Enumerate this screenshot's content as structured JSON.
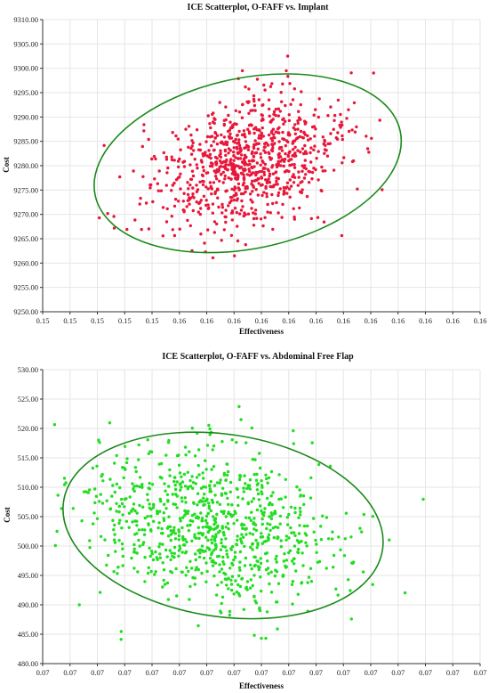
{
  "chart_data": [
    {
      "type": "scatter",
      "title": "ICE Scatterplot, O-FAFF vs. Implant",
      "xlabel": "Effectiveness",
      "ylabel": "Cost",
      "x_tick_labels": [
        "0.15",
        "0.15",
        "0.15",
        "0.15",
        "0.15",
        "0.16",
        "0.16",
        "0.16",
        "0.16",
        "0.16",
        "0.16",
        "0.16",
        "0.16",
        "0.16",
        "0.16",
        "0.16",
        "0.16"
      ],
      "xlim": [
        0.148,
        0.164
      ],
      "y_tick_labels": [
        "9250.00",
        "9255.00",
        "9260.00",
        "9265.00",
        "9270.00",
        "9275.00",
        "9280.00",
        "9285.00",
        "9290.00",
        "9295.00",
        "9300.00",
        "9305.00",
        "9310.00"
      ],
      "ylim": [
        9250,
        9310
      ],
      "point_color": "#e8173a",
      "ellipse_color": "#1a8a1a",
      "grid": true,
      "cloud": {
        "n": 900,
        "center": [
          0.1555,
          9280.5
        ],
        "x_sd": 0.0017,
        "y_sd": 7.0,
        "correlation": 0.35
      },
      "ellipse": {
        "center": [
          0.1555,
          9280.5
        ],
        "semi_major_x": 0.0057,
        "semi_minor_y": 17.5
      }
    },
    {
      "type": "scatter",
      "title": "ICE Scatterplot, O-FAFF vs. Abdominal Free Flap",
      "xlabel": "Effectiveness",
      "ylabel": "Cost",
      "x_tick_labels": [
        "0.07",
        "0.07",
        "0.07",
        "0.07",
        "0.07",
        "0.07",
        "0.07",
        "0.07",
        "0.07",
        "0.07",
        "0.07",
        "0.07",
        "0.07",
        "0.07",
        "0.07",
        "0.07",
        "0.07"
      ],
      "xlim": [
        0,
        16
      ],
      "y_tick_labels": [
        "480.00",
        "485.00",
        "490.00",
        "495.00",
        "500.00",
        "505.00",
        "510.00",
        "515.00",
        "520.00",
        "525.00",
        "530.00"
      ],
      "ylim": [
        480,
        530
      ],
      "point_color": "#22dd22",
      "ellipse_color": "#1a8a1a",
      "grid": true,
      "cloud": {
        "n": 900,
        "center": [
          6.2,
          503.5
        ],
        "x_sd": 2.3,
        "y_sd": 6.5,
        "correlation": -0.25
      },
      "ellipse": {
        "center": [
          6.6,
          503.5
        ],
        "semi_major_x": 5.9,
        "semi_minor_y": 15.5
      }
    }
  ]
}
